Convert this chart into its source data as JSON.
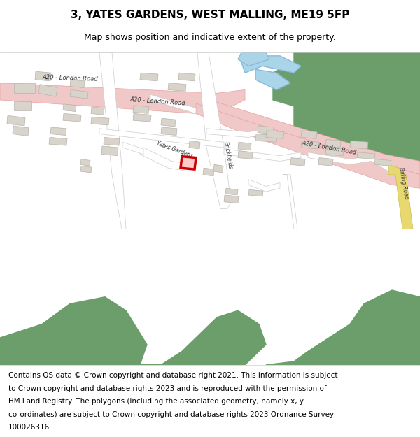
{
  "title": "3, YATES GARDENS, WEST MALLING, ME19 5FP",
  "subtitle": "Map shows position and indicative extent of the property.",
  "footer_lines": [
    "Contains OS data © Crown copyright and database right 2021. This information is subject",
    "to Crown copyright and database rights 2023 and is reproduced with the permission of",
    "HM Land Registry. The polygons (including the associated geometry, namely x, y",
    "co-ordinates) are subject to Crown copyright and database rights 2023 Ordnance Survey",
    "100026316."
  ],
  "map_bg": "#f5f3ef",
  "road_pink": "#f0c8c8",
  "road_pink_border": "#e8a0a0",
  "building_color": "#d8d4cc",
  "building_border": "#b8b4ac",
  "green_color": "#6b9e6b",
  "water_color": "#aad4e8",
  "red_highlight": "#cc0000",
  "yellow_road": "#e8d870",
  "title_fontsize": 11,
  "subtitle_fontsize": 9,
  "footer_fontsize": 7.5
}
